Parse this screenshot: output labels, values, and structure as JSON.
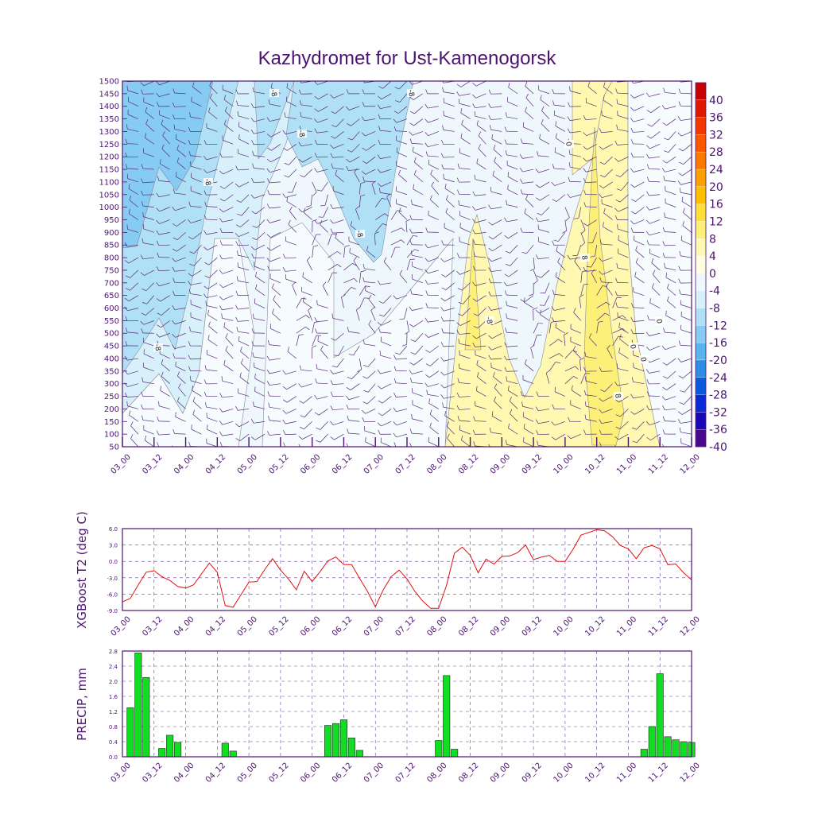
{
  "title": "Kazhydromet for Ust-Kamenogorsk",
  "colors": {
    "frame": "#4b1470",
    "barb": "#5a2a7a",
    "line": "#e01010",
    "bar": "#11dd22",
    "grid": "#6a40a0"
  },
  "time_labels": [
    "03_00",
    "03_12",
    "04_00",
    "04_12",
    "05_00",
    "05_12",
    "06_00",
    "06_12",
    "07_00",
    "07_12",
    "08_00",
    "08_12",
    "09_00",
    "09_12",
    "10_00",
    "10_12",
    "11_00",
    "11_12",
    "12_00"
  ],
  "chart_data": [
    {
      "type": "heatmap",
      "title": "Kazhydromet for Ust-Kamenogorsk",
      "x_ticks": [
        "03_00",
        "03_12",
        "04_00",
        "04_12",
        "05_00",
        "05_12",
        "06_00",
        "06_12",
        "07_00",
        "07_12",
        "08_00",
        "08_12",
        "09_00",
        "09_12",
        "10_00",
        "10_12",
        "11_00",
        "11_12",
        "12_00"
      ],
      "y_ticks": [
        50,
        100,
        150,
        200,
        250,
        300,
        350,
        400,
        450,
        500,
        550,
        600,
        650,
        700,
        750,
        800,
        850,
        900,
        950,
        1000,
        1050,
        1100,
        1150,
        1200,
        1250,
        1300,
        1350,
        1400,
        1450,
        1500
      ],
      "ylim": [
        50,
        1500
      ],
      "colorbar": {
        "labels": [
          40,
          36,
          32,
          28,
          24,
          20,
          16,
          12,
          8,
          4,
          0,
          -4,
          -8,
          -12,
          -16,
          -20,
          -24,
          -28,
          -32,
          -36,
          -40
        ],
        "colors": [
          "#c80000",
          "#e01800",
          "#f03800",
          "#f85800",
          "#fc7800",
          "#fca000",
          "#fcc000",
          "#fce038",
          "#fcf078",
          "#fef8b0",
          "#fffde0",
          "#eef8fc",
          "#d8f0fa",
          "#b0e0f6",
          "#86ccf2",
          "#5ab4ec",
          "#2c8ce6",
          "#0a5ae0",
          "#0a2ad8",
          "#1808b8",
          "#480890"
        ]
      },
      "contour_labels": [
        "-8",
        "-8",
        "-8",
        "-8",
        "-8",
        "-8",
        "-8",
        "0",
        "0",
        "0",
        "0",
        "8",
        "8"
      ]
    },
    {
      "type": "line",
      "ylabel": "XGBoost T2 (deg C)",
      "ylim": [
        -9.0,
        6.0
      ],
      "y_ticks": [
        "6.0",
        "3.0",
        "0.0",
        "-3.0",
        "-6.0",
        "-9.0"
      ],
      "x_ticks": [
        "03_00",
        "03_12",
        "04_00",
        "04_12",
        "05_00",
        "05_12",
        "06_00",
        "06_12",
        "07_00",
        "07_12",
        "08_00",
        "08_12",
        "09_00",
        "09_12",
        "10_00",
        "10_12",
        "11_00",
        "11_12",
        "12_00"
      ],
      "x": [
        0,
        3,
        6,
        9,
        12,
        15,
        18,
        21,
        24,
        27,
        30,
        33,
        36,
        39,
        42,
        45,
        48,
        51,
        54,
        57,
        60,
        63,
        66,
        69,
        72,
        75,
        78,
        81,
        84,
        87,
        90,
        93,
        96,
        99,
        102,
        105,
        108,
        111,
        114,
        117,
        120,
        123,
        126,
        129,
        132,
        135,
        138,
        141,
        144,
        147,
        150,
        153,
        156,
        159,
        162,
        165,
        168,
        171,
        174,
        177,
        180,
        183,
        186,
        189,
        192,
        195,
        198,
        201,
        204,
        207,
        210,
        213,
        216
      ],
      "values": [
        -7.4,
        -6.8,
        -4.3,
        -2.0,
        -1.7,
        -2.8,
        -3.5,
        -4.6,
        -4.9,
        -4.3,
        -2.3,
        -0.3,
        -2.0,
        -8.1,
        -8.4,
        -6.1,
        -3.8,
        -3.7,
        -1.5,
        0.5,
        -1.6,
        -3.2,
        -5.2,
        -1.8,
        -3.7,
        -1.9,
        0.1,
        0.8,
        -0.6,
        -0.6,
        -3.1,
        -5.5,
        -8.3,
        -5.2,
        -2.8,
        -1.6,
        -3.2,
        -5.5,
        -7.3,
        -8.6,
        -8.6,
        -4.4,
        1.5,
        2.6,
        1.1,
        -2.1,
        0.4,
        -0.5,
        0.9,
        1.0,
        1.6,
        3.0,
        0.3,
        0.8,
        1.1,
        0.0,
        0.0,
        2.2,
        4.8,
        5.3,
        5.8,
        5.6,
        4.5,
        2.9,
        2.3,
        0.5,
        2.5,
        2.9,
        2.3,
        -0.6,
        -0.5,
        -2.1,
        -3.4
      ]
    },
    {
      "type": "bar",
      "ylabel": "PRECIP, mm",
      "ylim": [
        0.0,
        2.8
      ],
      "y_ticks": [
        "2.8",
        "2.4",
        "2.0",
        "1.6",
        "1.2",
        "0.8",
        "0.4",
        "0.0"
      ],
      "x_ticks": [
        "03_00",
        "03_12",
        "04_00",
        "04_12",
        "05_00",
        "05_12",
        "06_00",
        "06_12",
        "07_00",
        "07_12",
        "08_00",
        "08_12",
        "09_00",
        "09_12",
        "10_00",
        "10_12",
        "11_00",
        "11_12",
        "12_00"
      ],
      "x": [
        3,
        6,
        9,
        15,
        18,
        21,
        39,
        42,
        78,
        81,
        84,
        87,
        90,
        120,
        123,
        126,
        198,
        201,
        204,
        207,
        210,
        213,
        216
      ],
      "values": [
        1.3,
        2.75,
        2.1,
        0.22,
        0.57,
        0.38,
        0.36,
        0.15,
        0.83,
        0.88,
        0.98,
        0.5,
        0.17,
        0.43,
        2.15,
        0.2,
        0.2,
        0.8,
        2.2,
        0.53,
        0.45,
        0.4,
        0.38
      ]
    }
  ]
}
